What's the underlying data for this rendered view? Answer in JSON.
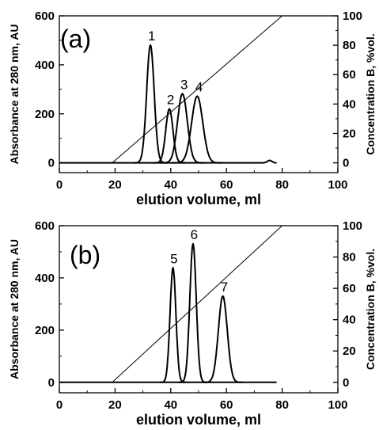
{
  "chart_data": [
    {
      "type": "line",
      "panel_label": "(a)",
      "xlabel": "elution volume, ml",
      "ylabel": "Absorbance at 280 nm, AU",
      "y2label": "Concentration B, %vol.",
      "xlim": [
        0,
        100
      ],
      "ylim": [
        -40,
        600
      ],
      "y2lim": [
        -6.67,
        100
      ],
      "xticks": [
        0,
        20,
        40,
        60,
        80,
        100
      ],
      "yticks": [
        0,
        200,
        400,
        600
      ],
      "y2ticks": [
        0,
        20,
        40,
        60,
        80,
        100
      ],
      "gradient": {
        "axis": "y2",
        "x": [
          0,
          19,
          80,
          95
        ],
        "y": [
          0,
          0,
          100,
          100
        ]
      },
      "peaks": [
        {
          "label": "1",
          "center": 32.7,
          "height": 480,
          "sigma": 1.35
        },
        {
          "label": "2",
          "center": 39.5,
          "height": 220,
          "sigma": 1.3
        },
        {
          "label": "3",
          "center": 44.2,
          "height": 282,
          "sigma": 1.75
        },
        {
          "label": "4",
          "center": 49.5,
          "height": 272,
          "sigma": 2.0
        }
      ],
      "baseline_bump": {
        "center": 75.5,
        "height": 10,
        "sigma": 0.8
      }
    },
    {
      "type": "line",
      "panel_label": "(b)",
      "xlabel": "elution volume, ml",
      "ylabel": "Absorbance at 280 nm, AU",
      "y2label": "Concentration B, %vol.",
      "xlim": [
        0,
        100
      ],
      "ylim": [
        -40,
        600
      ],
      "y2lim": [
        -6.67,
        100
      ],
      "xticks": [
        0,
        20,
        40,
        60,
        80,
        100
      ],
      "yticks": [
        0,
        200,
        400,
        600
      ],
      "y2ticks": [
        0,
        20,
        40,
        60,
        80,
        100
      ],
      "gradient": {
        "axis": "y2",
        "x": [
          0,
          19,
          80,
          95
        ],
        "y": [
          0,
          0,
          100,
          100
        ]
      },
      "peaks": [
        {
          "label": "5",
          "center": 40.8,
          "height": 438,
          "sigma": 1.05
        },
        {
          "label": "6",
          "center": 48.0,
          "height": 530,
          "sigma": 1.15
        },
        {
          "label": "7",
          "center": 58.7,
          "height": 330,
          "sigma": 1.6
        }
      ],
      "baseline_bump": null
    }
  ]
}
